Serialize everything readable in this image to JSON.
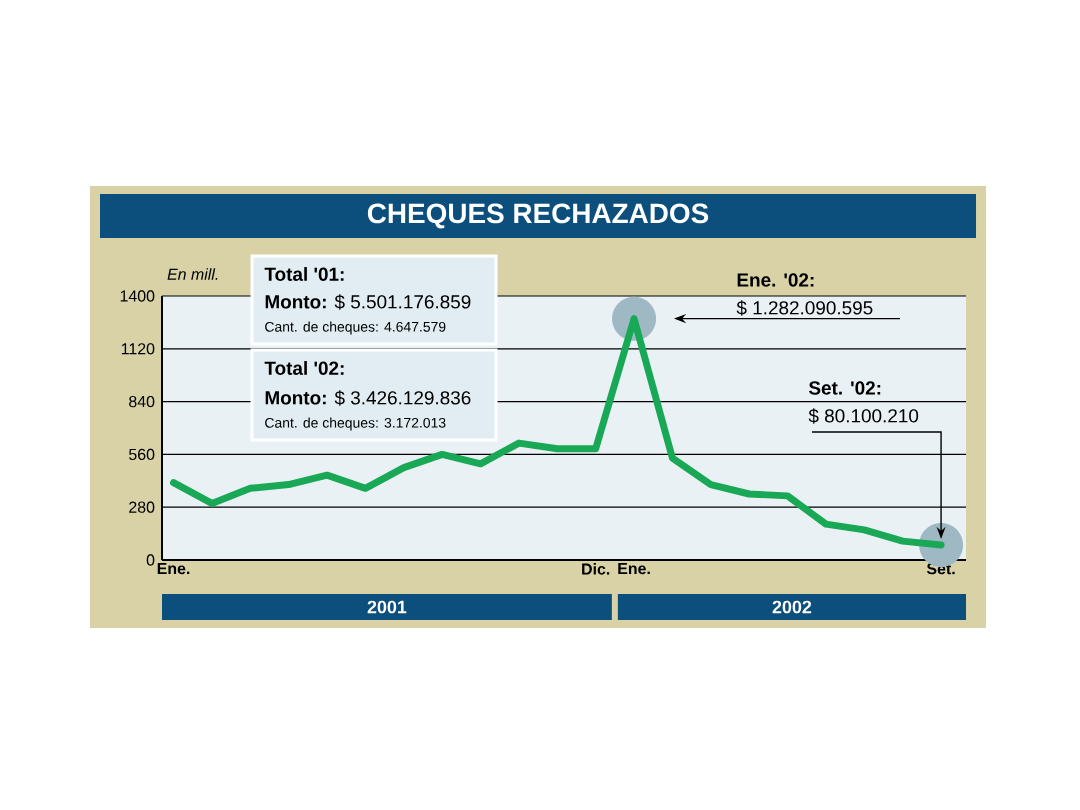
{
  "chart_data": {
    "type": "line",
    "title": "CHEQUES RECHAZADOS",
    "ylabel": "En mill.",
    "categories": [
      "Ene.",
      null,
      null,
      null,
      null,
      null,
      null,
      null,
      null,
      null,
      null,
      "Dic.",
      "Ene.",
      null,
      null,
      null,
      null,
      null,
      null,
      null,
      "Set."
    ],
    "values": [
      410,
      300,
      380,
      400,
      450,
      380,
      490,
      560,
      510,
      620,
      590,
      590,
      1280,
      540,
      400,
      350,
      340,
      190,
      160,
      100,
      80
    ],
    "color": "#19a856",
    "ylim": [
      0,
      1400
    ],
    "yticks": [
      0,
      280,
      560,
      840,
      1120,
      1400
    ],
    "grid": "y",
    "annotations": [
      "Total '01:",
      "**Monto:** $ 5.501.176.859",
      "Cant. de cheques: 4.647.579",
      "Total '02:",
      "**Monto:** $ 3.426.129.836",
      "Cant. de cheques: 3.172.013",
      "Ene. '02:",
      "$ 1.282.090.595",
      "Set. '02:",
      {
        "text": "$ 80.100.210",
        "x": "Set.",
        "y": 80
      },
      "2001",
      "2002"
    ]
  }
}
